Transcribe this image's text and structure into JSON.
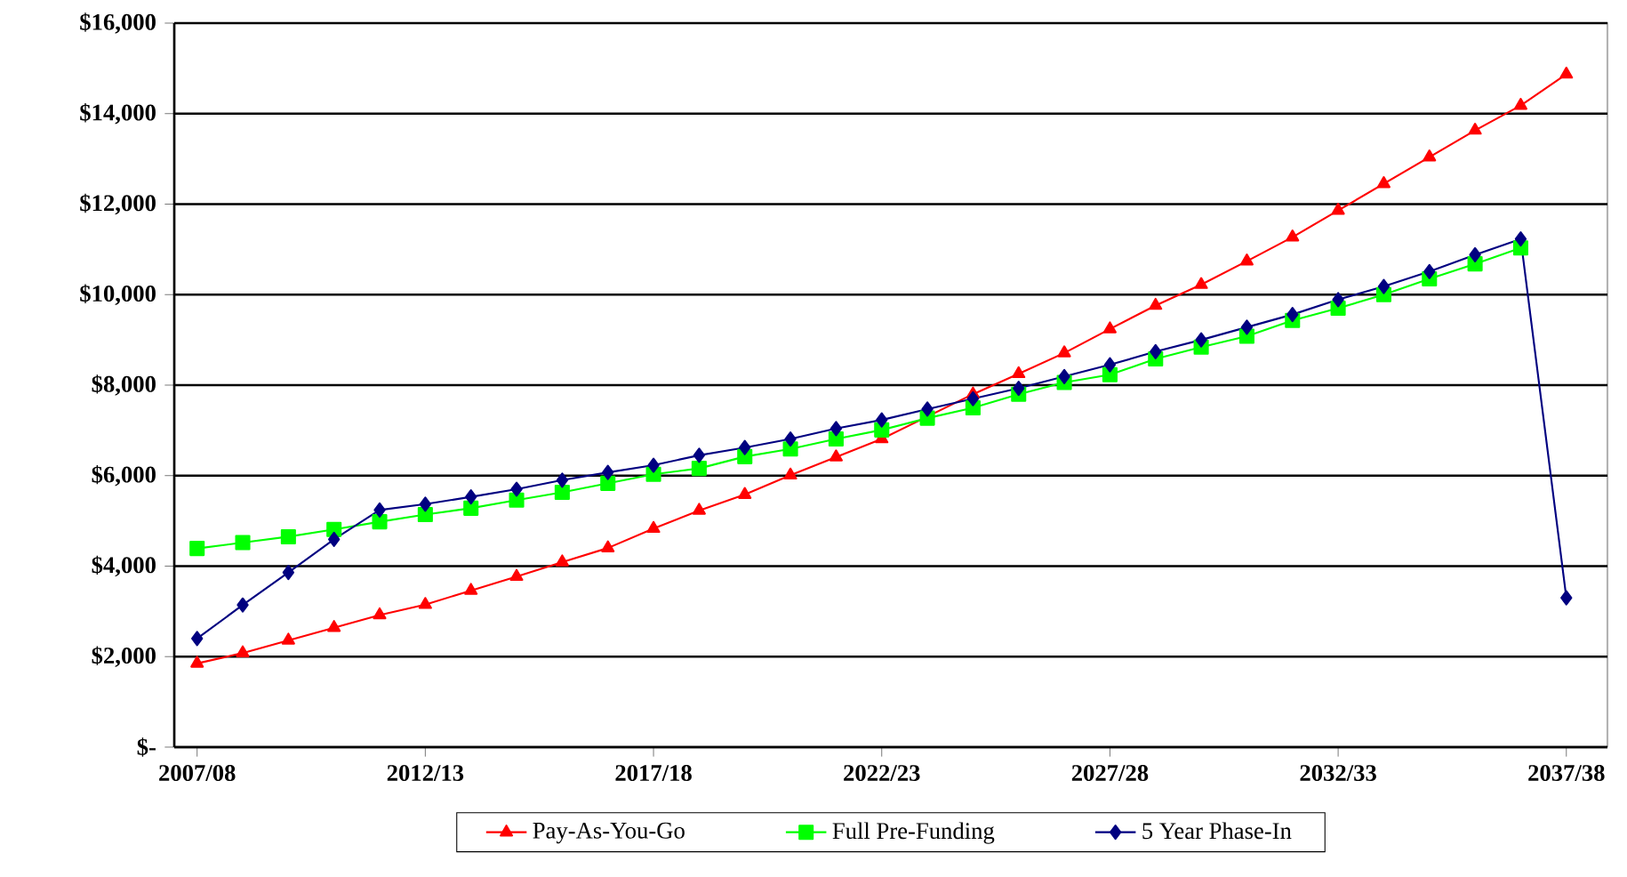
{
  "chart_data": {
    "type": "line",
    "categories": [
      "2007/08",
      null,
      null,
      null,
      null,
      "2012/13",
      null,
      null,
      null,
      null,
      "2017/18",
      null,
      null,
      null,
      null,
      "2022/23",
      null,
      null,
      null,
      null,
      "2027/28",
      null,
      null,
      null,
      null,
      "2032/33",
      null,
      null,
      null,
      null,
      "2037/38"
    ],
    "series": [
      {
        "name": "Pay-As-You-Go",
        "color": "#ff0000",
        "marker": "triangle",
        "values": [
          1850,
          2080,
          2360,
          2640,
          2920,
          3150,
          3460,
          3770,
          4090,
          4400,
          4830,
          5230,
          5580,
          6010,
          6410,
          6810,
          null,
          7800,
          8250,
          8710,
          9240,
          9760,
          10220,
          10740,
          11270,
          11860,
          12450,
          13040,
          13630,
          14180,
          14870
        ]
      },
      {
        "name": "Full Pre-Funding",
        "color": "#00ff00",
        "marker": "square",
        "values": [
          4390,
          4520,
          4650,
          4810,
          4980,
          5140,
          5280,
          5460,
          5630,
          5830,
          6030,
          6160,
          6420,
          6590,
          6810,
          7010,
          7270,
          7500,
          7800,
          8060,
          8230,
          8580,
          8840,
          9080,
          9430,
          9700,
          10000,
          10350,
          10680,
          11030,
          null
        ]
      },
      {
        "name": "5 Year Phase-In",
        "color": "#000080",
        "marker": "diamond",
        "values": [
          2400,
          3140,
          3860,
          4590,
          5240,
          5370,
          5530,
          5700,
          5900,
          6070,
          6230,
          6450,
          6620,
          6810,
          7040,
          7230,
          7470,
          7700,
          7930,
          8190,
          8450,
          8740,
          9000,
          9280,
          9560,
          9890,
          10180,
          10510,
          10880,
          11230,
          3300
        ]
      }
    ],
    "ylim": [
      0,
      16000
    ],
    "yticks": [
      {
        "value": 0,
        "label": "$-"
      },
      {
        "value": 2000,
        "label": "$2,000"
      },
      {
        "value": 4000,
        "label": "$4,000"
      },
      {
        "value": 6000,
        "label": "$6,000"
      },
      {
        "value": 8000,
        "label": "$8,000"
      },
      {
        "value": 10000,
        "label": "$10,000"
      },
      {
        "value": 12000,
        "label": "$12,000"
      },
      {
        "value": 14000,
        "label": "$14,000"
      },
      {
        "value": 16000,
        "label": "$16,000"
      }
    ],
    "grid": "y",
    "legend": "bottom"
  }
}
